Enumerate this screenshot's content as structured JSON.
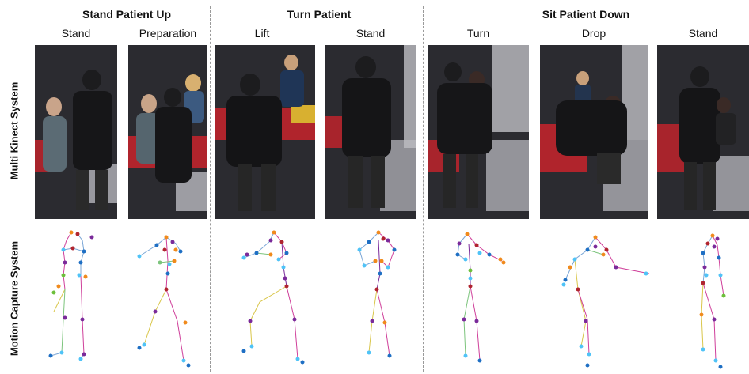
{
  "groups": [
    {
      "title": "Stand Patient Up"
    },
    {
      "title": "Turn Patient"
    },
    {
      "title": "Sit Patient Down"
    }
  ],
  "phases": [
    {
      "label": "Stand"
    },
    {
      "label": "Preparation"
    },
    {
      "label": "Lift"
    },
    {
      "label": "Stand"
    },
    {
      "label": "Turn"
    },
    {
      "label": "Drop"
    },
    {
      "label": "Stand"
    }
  ],
  "rows": {
    "kinect": "Multi Kinect System",
    "mocap": "Motion Capture System"
  },
  "colors": {
    "joint_purple": "#7a2a9a",
    "joint_orange": "#f08a1c",
    "joint_blue": "#1e6fc4",
    "joint_cyan": "#4fc3f7",
    "joint_green": "#6cbf3a",
    "joint_red": "#b0242f",
    "bone_pink": "#cf3f9a",
    "bone_yellow": "#d9c64a",
    "bone_blue": "#7aa6d6",
    "bone_green": "#7cc47c"
  }
}
